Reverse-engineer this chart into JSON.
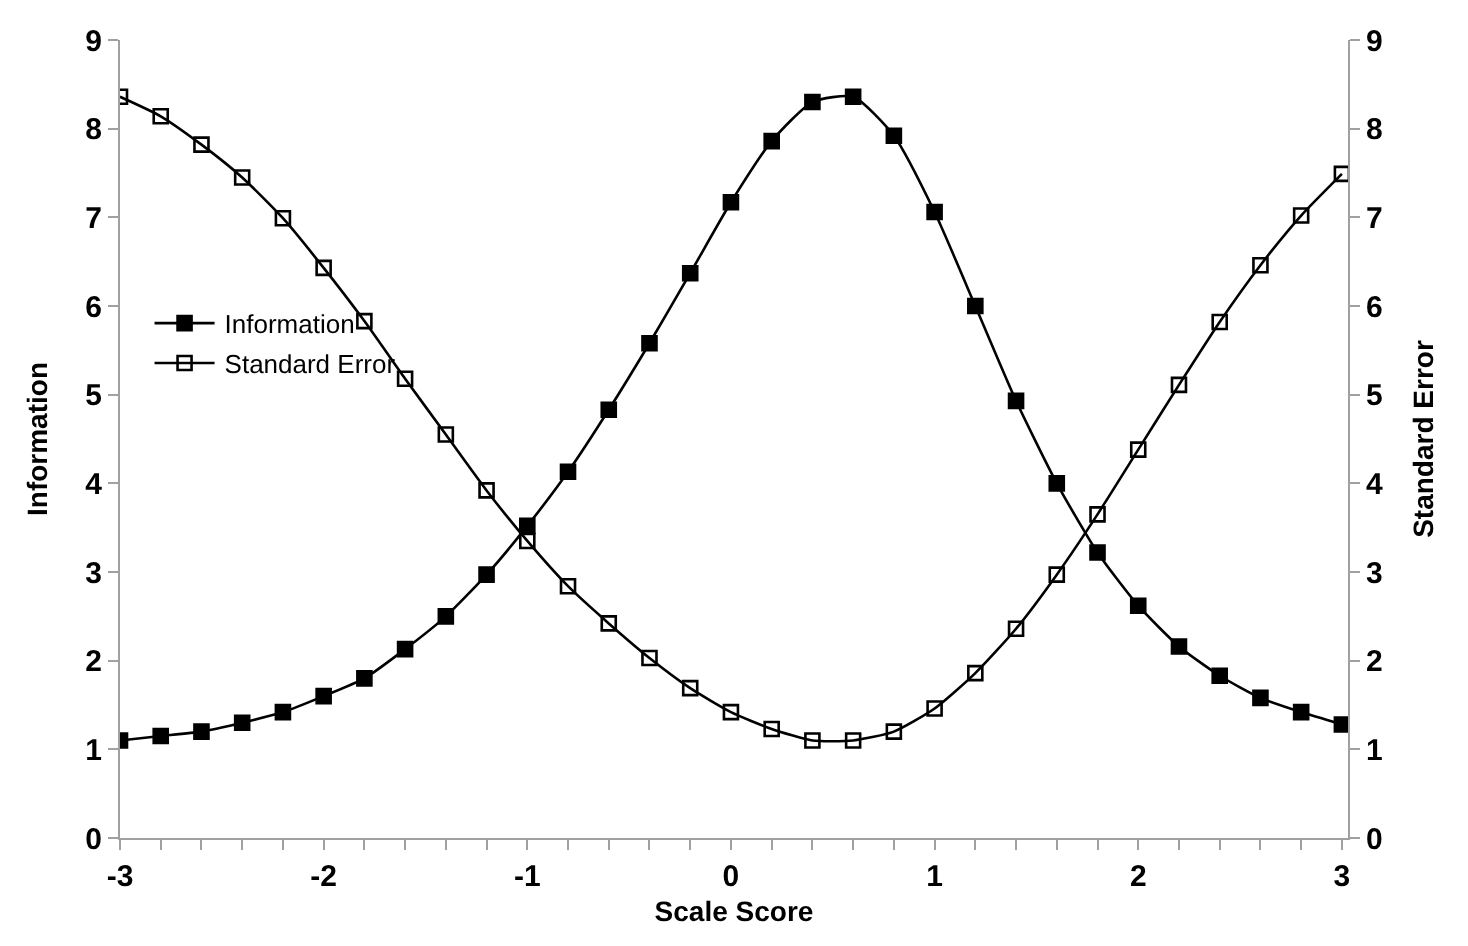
{
  "chart_data": {
    "type": "line",
    "xlabel": "Scale Score",
    "ylabel": "Information",
    "y2label": "Standard Error",
    "x": [
      -3,
      -2.8,
      -2.6,
      -2.4,
      -2.2,
      -2,
      -1.8,
      -1.6,
      -1.4,
      -1.2,
      -1,
      -0.8,
      -0.6,
      -0.4,
      -0.2,
      0,
      0.2,
      0.4,
      0.6,
      0.8,
      1,
      1.2,
      1.4,
      1.6,
      1.8,
      2,
      2.2,
      2.4,
      2.6,
      2.8,
      3
    ],
    "series": [
      {
        "name": "Information",
        "color": "#000000",
        "marker": "square",
        "values": [
          1.1,
          1.15,
          1.2,
          1.3,
          1.42,
          1.6,
          1.8,
          2.13,
          2.5,
          2.97,
          3.52,
          4.13,
          4.83,
          5.58,
          6.37,
          7.17,
          7.86,
          8.3,
          8.36,
          7.92,
          7.06,
          6.0,
          4.93,
          4.0,
          3.22,
          2.62,
          2.16,
          1.83,
          1.58,
          1.42,
          1.28
        ]
      },
      {
        "name": "Standard Error",
        "color": "#000000",
        "marker": "square-open",
        "axis": "y2",
        "values": [
          8.36,
          8.14,
          7.82,
          7.45,
          6.99,
          6.43,
          5.83,
          5.18,
          4.55,
          3.92,
          3.35,
          2.84,
          2.42,
          2.03,
          1.69,
          1.42,
          1.23,
          1.1,
          1.1,
          1.2,
          1.46,
          1.86,
          2.36,
          2.97,
          3.65,
          4.38,
          5.11,
          5.82,
          6.46,
          7.02,
          7.49
        ]
      }
    ],
    "xlim": [
      -3,
      3.03
    ],
    "xticks": [
      -3,
      -2,
      -1,
      0,
      1,
      2,
      3
    ],
    "ylim": [
      0,
      9
    ],
    "yticks": [
      0,
      1,
      2,
      3,
      4,
      5,
      6,
      7,
      8,
      9
    ],
    "y2lim": [
      0,
      9
    ],
    "y2ticks": [
      0,
      1,
      2,
      3,
      4,
      5,
      6,
      7,
      8,
      9
    ],
    "legend": "left",
    "line_style": "solid"
  }
}
